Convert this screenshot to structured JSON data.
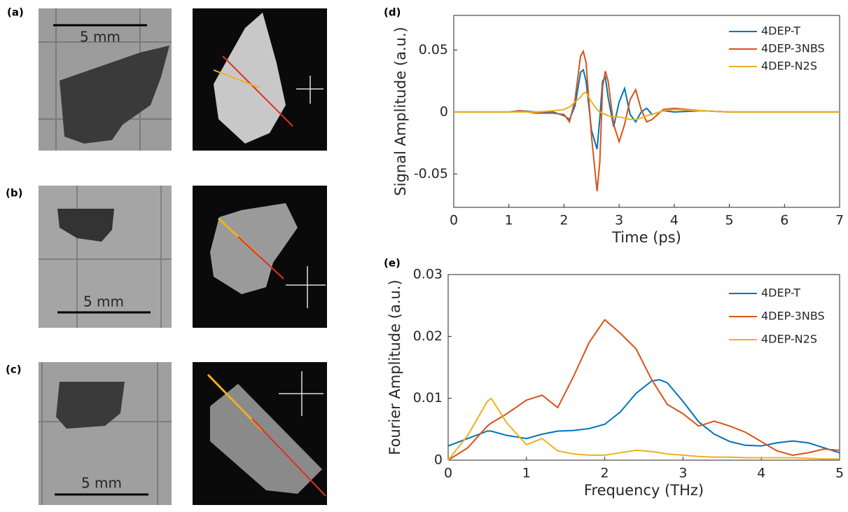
{
  "panel_labels": [
    "(a)",
    "(b)",
    "(c)",
    "(d)",
    "(e)"
  ],
  "scale_bar_labels": [
    "5 mm",
    "5 mm",
    "5 mm"
  ],
  "chart_data": [
    {
      "type": "line",
      "xlabel": "Time (ps)",
      "ylabel": "Signal Amplitude (a.u.)",
      "x": [
        0,
        0.5,
        1,
        1.2,
        1.5,
        1.8,
        2.0,
        2.1,
        2.2,
        2.3,
        2.35,
        2.4,
        2.5,
        2.6,
        2.65,
        2.7,
        2.75,
        2.8,
        2.9,
        3.0,
        3.1,
        3.2,
        3.3,
        3.4,
        3.5,
        3.6,
        3.8,
        4.0,
        4.5,
        5,
        6,
        7
      ],
      "series": [
        {
          "name": "4DEP-T",
          "color": "#0072bd",
          "values": [
            0,
            0,
            0,
            0.001,
            0,
            0,
            -0.003,
            -0.006,
            0.005,
            0.032,
            0.034,
            0.025,
            -0.015,
            -0.03,
            -0.005,
            0.025,
            0.028,
            0.012,
            -0.012,
            0.008,
            0.019,
            -0.002,
            -0.008,
            0,
            0.003,
            -0.002,
            0.001,
            0,
            0.001,
            0,
            0,
            0
          ]
        },
        {
          "name": "4DEP-3NBS",
          "color": "#d95319",
          "values": [
            0,
            0,
            0,
            0.001,
            -0.001,
            -0.001,
            -0.002,
            -0.008,
            0.01,
            0.045,
            0.049,
            0.04,
            -0.02,
            -0.064,
            -0.04,
            0.02,
            0.033,
            0.025,
            -0.01,
            -0.024,
            -0.01,
            0.01,
            0.018,
            0.002,
            -0.008,
            -0.006,
            0.002,
            0.003,
            0.001,
            0,
            0,
            0
          ]
        },
        {
          "name": "4DEP-N2S",
          "color": "#edb120",
          "values": [
            0,
            0,
            0,
            0,
            0,
            0.001,
            0.002,
            0.004,
            0.008,
            0.012,
            0.015,
            0.016,
            0.008,
            0.002,
            0,
            -0.001,
            -0.002,
            -0.003,
            -0.004,
            -0.004,
            -0.005,
            -0.006,
            -0.006,
            -0.005,
            -0.003,
            -0.002,
            0.001,
            0.002,
            0.001,
            0,
            0,
            0
          ]
        }
      ],
      "xlim": [
        0,
        7
      ],
      "xticks": [
        0,
        1,
        2,
        3,
        4,
        5,
        6,
        7
      ],
      "ylim": [
        -0.077,
        0.078
      ],
      "yticks": [
        -0.05,
        0,
        0.05
      ],
      "legend": "upper right"
    },
    {
      "type": "line",
      "xlabel": "Frequency (THz)",
      "ylabel": "Fourier Amplitude (a.u.)",
      "x": [
        0,
        0.25,
        0.5,
        0.55,
        0.75,
        1,
        1.2,
        1.4,
        1.6,
        1.8,
        2,
        2.2,
        2.4,
        2.6,
        2.7,
        2.8,
        3,
        3.2,
        3.4,
        3.6,
        3.8,
        4,
        4.2,
        4.4,
        4.6,
        4.8,
        5
      ],
      "series": [
        {
          "name": "4DEP-T",
          "color": "#0072bd",
          "values": [
            0.0023,
            0.0035,
            0.0047,
            0.0047,
            0.004,
            0.0035,
            0.0042,
            0.0047,
            0.0048,
            0.0051,
            0.0058,
            0.0078,
            0.0108,
            0.0128,
            0.013,
            0.0125,
            0.0095,
            0.0062,
            0.0042,
            0.003,
            0.0024,
            0.0023,
            0.0028,
            0.0031,
            0.0028,
            0.002,
            0.0012
          ]
        },
        {
          "name": "4DEP-3NBS",
          "color": "#d95319",
          "values": [
            0,
            0.002,
            0.0055,
            0.006,
            0.0075,
            0.0097,
            0.0105,
            0.0085,
            0.0135,
            0.019,
            0.0227,
            0.0205,
            0.018,
            0.013,
            0.011,
            0.009,
            0.0075,
            0.0055,
            0.0063,
            0.0055,
            0.0045,
            0.003,
            0.0015,
            0.0008,
            0.0012,
            0.0018,
            0.0016
          ]
        },
        {
          "name": "4DEP-N2S",
          "color": "#edb120",
          "values": [
            0,
            0.004,
            0.0095,
            0.01,
            0.006,
            0.0025,
            0.0035,
            0.0015,
            0.001,
            0.0008,
            0.0008,
            0.0012,
            0.0016,
            0.0014,
            0.0012,
            0.001,
            0.0008,
            0.0006,
            0.0005,
            0.0005,
            0.0004,
            0.0004,
            0.0004,
            0.0004,
            0.0003,
            0.0002,
            0.0002
          ]
        }
      ],
      "xlim": [
        0,
        5
      ],
      "xticks": [
        0,
        1,
        2,
        3,
        4,
        5
      ],
      "ylim": [
        0,
        0.03
      ],
      "yticks": [
        0,
        0.01,
        0.02,
        0.03
      ],
      "legend": "upper right"
    }
  ]
}
